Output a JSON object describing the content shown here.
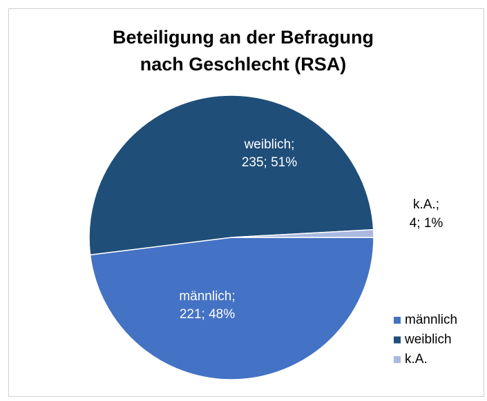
{
  "chart_data": {
    "type": "pie",
    "title": [
      "Beteiligung an der Befragung",
      "nach Geschlecht (RSA)"
    ],
    "categories": [
      "männlich",
      "weiblich",
      "k.A."
    ],
    "values": [
      221,
      235,
      4
    ],
    "value_labels": [
      [
        "männlich;",
        "221; 48%"
      ],
      [
        "weiblich;",
        "235; 51%"
      ],
      [
        "k.A.;",
        "4; 1%"
      ]
    ],
    "colors": [
      "#4472c4",
      "#1f4e79",
      "#a9b9e0"
    ],
    "legend": "right"
  }
}
